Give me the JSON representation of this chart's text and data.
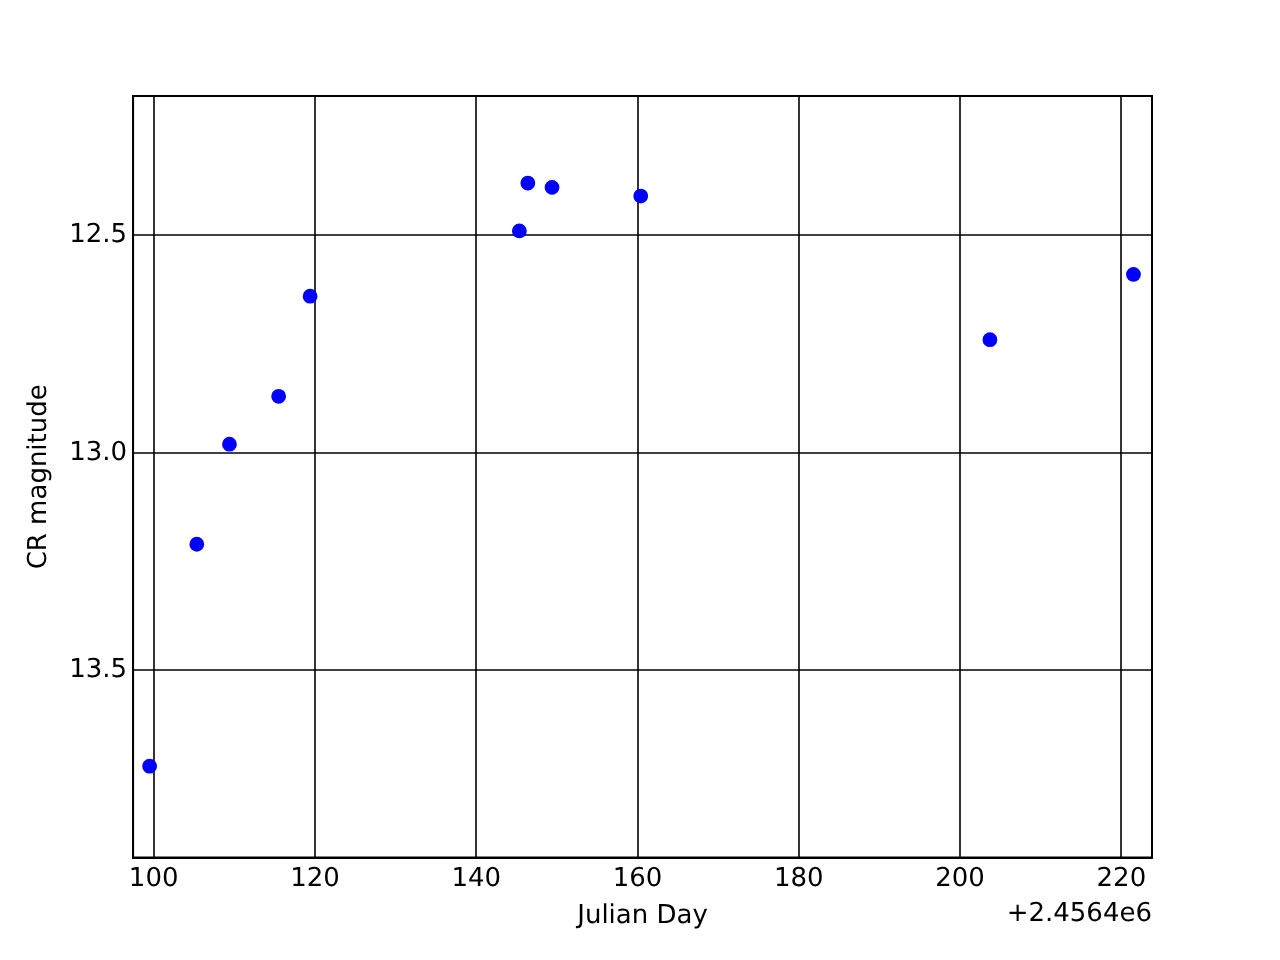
{
  "chart_data": {
    "type": "scatter",
    "xlabel": "Julian Day",
    "ylabel": "CR magnitude",
    "x": [
      99.5,
      105.35,
      109.4,
      115.5,
      119.4,
      145.35,
      146.4,
      149.4,
      160.4,
      203.7,
      221.5
    ],
    "values": [
      13.72,
      13.21,
      12.98,
      12.87,
      12.64,
      12.49,
      12.38,
      12.39,
      12.41,
      12.74,
      12.59
    ],
    "color": "#0000ff",
    "marker": "circle",
    "xlim": [
      97.45,
      223.8
    ],
    "xticks": [
      100,
      120,
      140,
      160,
      180,
      200,
      220
    ],
    "ylim": [
      13.93,
      12.18
    ],
    "yticks": [
      12.5,
      {
        "value": 13,
        "label": "13.0"
      },
      13.5
    ],
    "grid": true,
    "legend": false,
    "annotations": [
      "+2.4564e6"
    ]
  }
}
